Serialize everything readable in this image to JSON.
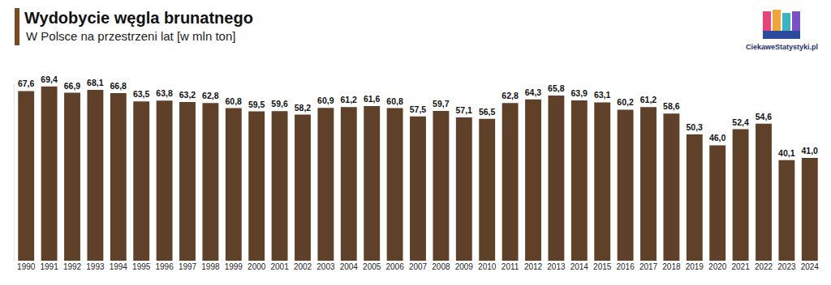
{
  "chart_data": {
    "type": "bar",
    "title": "Wydobycie węgla brunatnego",
    "subtitle": "W Polsce na przestrzeni lat [w mln ton]",
    "annotations": [
      "CiekaweStatystyki.pl"
    ],
    "categories": [
      "1990",
      "1991",
      "1992",
      "1993",
      "1994",
      "1995",
      "1996",
      "1997",
      "1998",
      "1999",
      "2000",
      "2001",
      "2002",
      "2003",
      "2004",
      "2005",
      "2006",
      "2007",
      "2008",
      "2009",
      "2010",
      "2011",
      "2012",
      "2013",
      "2014",
      "2015",
      "2016",
      "2017",
      "2018",
      "2019",
      "2020",
      "2021",
      "2022",
      "2023",
      "2024"
    ],
    "values": [
      67.6,
      69.4,
      66.9,
      68.1,
      66.8,
      63.5,
      63.8,
      63.2,
      62.8,
      60.8,
      59.5,
      59.6,
      58.2,
      60.9,
      61.2,
      61.6,
      60.8,
      57.5,
      59.7,
      57.1,
      56.5,
      62.8,
      64.3,
      65.8,
      63.9,
      63.1,
      60.2,
      61.2,
      58.6,
      50.3,
      46.0,
      52.4,
      54.6,
      40.1,
      41.0
    ],
    "value_labels": [
      "67,6",
      "69,4",
      "66,9",
      "68,1",
      "66,8",
      "63,5",
      "63,8",
      "63,2",
      "62,8",
      "60,8",
      "59,5",
      "59,6",
      "58,2",
      "60,9",
      "61,2",
      "61,6",
      "60,8",
      "57,5",
      "59,7",
      "57,1",
      "56,5",
      "62,8",
      "64,3",
      "65,8",
      "63,9",
      "63,1",
      "60,2",
      "61,2",
      "58,6",
      "50,3",
      "46,0",
      "52,4",
      "54,6",
      "40,1",
      "41,0"
    ],
    "color": "#5e4128",
    "ylim": [
      0,
      70
    ],
    "grid": false,
    "data_labels": true,
    "tick_labels": "x"
  }
}
